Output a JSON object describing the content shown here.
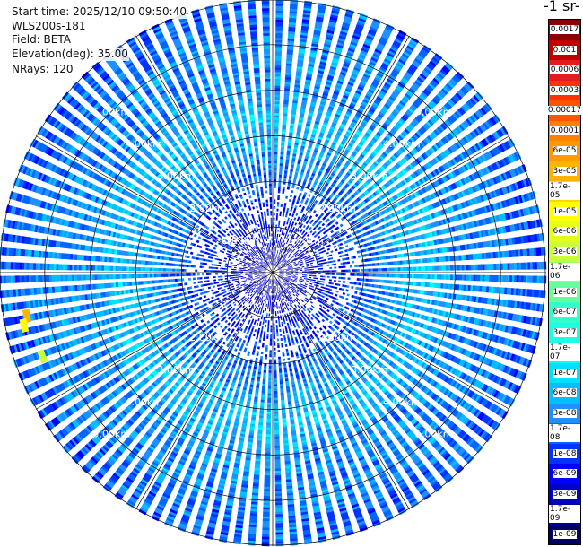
{
  "info": {
    "start_time": "Start time: 2025/12/10 09:50:40",
    "instrument": "WLS200s-181",
    "field": "Field: BETA",
    "elevation": "Elevation(deg): 35.00",
    "nrays": "NRays: 120"
  },
  "colorbar": {
    "title": "-1 sr-",
    "levels": [
      {
        "label": "0.0017",
        "color": "#8b0000"
      },
      {
        "label": "0.001",
        "color": "#c00000"
      },
      {
        "label": "0.0006",
        "color": "#e41a1c"
      },
      {
        "label": "0.0003",
        "color": "#ff3300"
      },
      {
        "label": "0.00017",
        "color": "#ff5500"
      },
      {
        "label": "0.0001",
        "color": "#ff7f00"
      },
      {
        "label": "6e-05",
        "color": "#ff9900"
      },
      {
        "label": "3e-05",
        "color": "#ffb300"
      },
      {
        "label": "1.7e-05",
        "color": "#ffd700"
      },
      {
        "label": "1e-05",
        "color": "#ffff00"
      },
      {
        "label": "6e-06",
        "color": "#e5ff1a"
      },
      {
        "label": "3e-06",
        "color": "#c8ff3a"
      },
      {
        "label": "1.7e-06",
        "color": "#99ff66"
      },
      {
        "label": "1e-06",
        "color": "#66ff99"
      },
      {
        "label": "6e-07",
        "color": "#33ffcc"
      },
      {
        "label": "3e-07",
        "color": "#1affe5"
      },
      {
        "label": "1.7e-07",
        "color": "#00ffff"
      },
      {
        "label": "1e-07",
        "color": "#00e0ff"
      },
      {
        "label": "6e-08",
        "color": "#00bfff"
      },
      {
        "label": "3e-08",
        "color": "#1e90ff"
      },
      {
        "label": "1.7e-08",
        "color": "#0066ff"
      },
      {
        "label": "1e-08",
        "color": "#0033ff"
      },
      {
        "label": "6e-09",
        "color": "#0000ff"
      },
      {
        "label": "3e-09",
        "color": "#0000cc"
      },
      {
        "label": "1.7e-09",
        "color": "#000099"
      },
      {
        "label": "1e-09",
        "color": "#000066"
      }
    ]
  },
  "chart_data": {
    "type": "heatmap",
    "projection": "polar-ppi",
    "field": "BETA",
    "elevation_deg": 35.0,
    "n_rays": 120,
    "range_rings_km": [
      1,
      2,
      3,
      4,
      5
    ],
    "range_labels": [
      "1.00km",
      "2.00km",
      "3.00km",
      "4.00km",
      "5.00km"
    ],
    "max_range_km": 6.0,
    "azimuth_spokes_deg": [
      0,
      30,
      60,
      90,
      120,
      150,
      180,
      210,
      240,
      270,
      300,
      330
    ],
    "grid": true,
    "radial_profile": {
      "range_km": [
        0.2,
        0.5,
        1.0,
        1.5,
        2.0,
        2.5,
        3.0,
        3.5,
        4.0,
        4.5,
        5.0,
        5.5,
        6.0
      ],
      "typical_beta": [
        3e-09,
        3e-09,
        6e-09,
        1e-08,
        1.7e-08,
        3e-08,
        6e-08,
        6e-08,
        3e-08,
        3e-08,
        3e-08,
        1.7e-08,
        1.7e-08
      ]
    },
    "highlights": [
      {
        "azimuth_deg": 260,
        "range_km": 5.4,
        "beta": 3e-05
      },
      {
        "azimuth_deg": 258,
        "range_km": 5.5,
        "beta": 1e-05
      },
      {
        "azimuth_deg": 250,
        "range_km": 5.3,
        "beta": 3e-06
      }
    ]
  }
}
